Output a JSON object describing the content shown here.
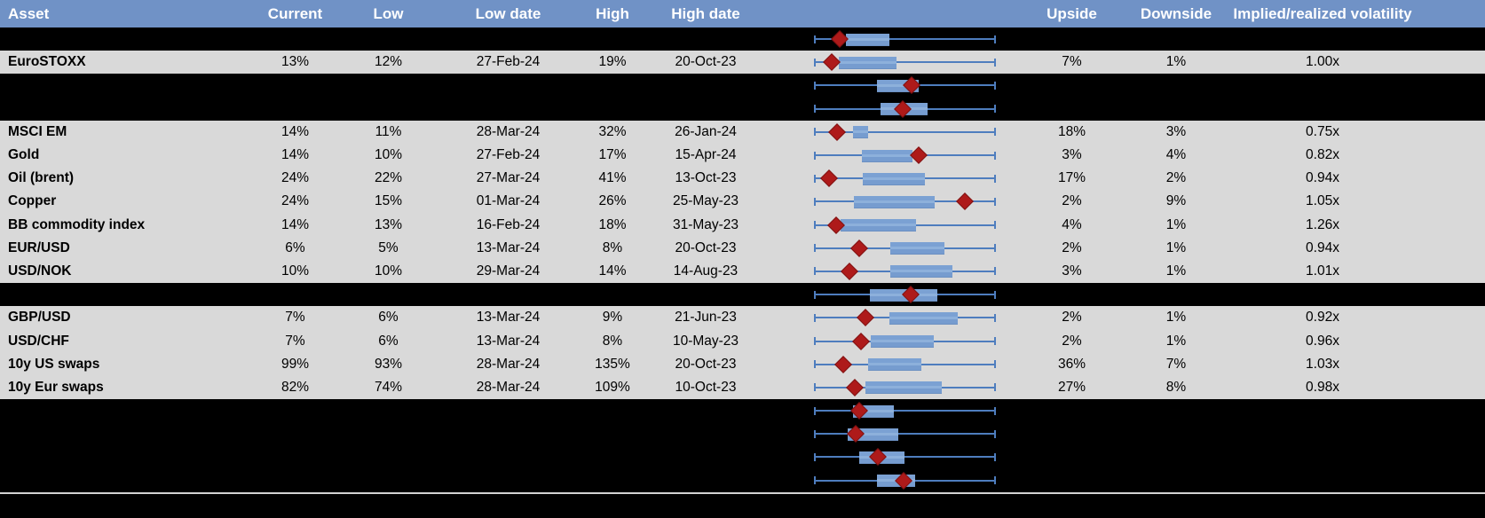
{
  "colors": {
    "header_bg": "#7092C6",
    "row_bg": "#D9D9D9",
    "black_band": "#000000",
    "whisker_blue": "#4E7DBE",
    "box_blue": "#7BA1D3",
    "marker_red": "#AE1A1A"
  },
  "header": {
    "columns": [
      "Asset",
      "Current",
      "Low",
      "Low date",
      "High",
      "High date",
      "",
      "Upside",
      "Downside",
      "Implied/realized volatility"
    ]
  },
  "rows": [
    {
      "type": "chart",
      "asset": "",
      "current": "",
      "low": "",
      "low_date": "",
      "high": "",
      "high_date": "",
      "upside": "",
      "downside": "",
      "implied": "",
      "box_lo": 0.176,
      "box_hi": 0.415,
      "marker": 0.142
    },
    {
      "type": "data",
      "asset": "EuroSTOXX",
      "current": "13%",
      "low": "12%",
      "low_date": "27-Feb-24",
      "high": "19%",
      "high_date": "20-Oct-23",
      "upside": "7%",
      "downside": "1%",
      "implied": "1.00x",
      "box_lo": 0.137,
      "box_hi": 0.454,
      "marker": 0.098
    },
    {
      "type": "chart",
      "asset": "",
      "current": "",
      "low": "",
      "low_date": "",
      "high": "",
      "high_date": "",
      "upside": "",
      "downside": "",
      "implied": "",
      "box_lo": 0.346,
      "box_hi": 0.576,
      "marker": 0.537
    },
    {
      "type": "chart",
      "asset": "",
      "current": "",
      "low": "",
      "low_date": "",
      "high": "",
      "high_date": "",
      "upside": "",
      "downside": "",
      "implied": "",
      "box_lo": 0.366,
      "box_hi": 0.624,
      "marker": 0.488
    },
    {
      "type": "data",
      "asset": "MSCI EM",
      "current": "14%",
      "low": "11%",
      "low_date": "28-Mar-24",
      "high": "32%",
      "high_date": "26-Jan-24",
      "upside": "18%",
      "downside": "3%",
      "implied": "0.75x",
      "box_lo": 0.215,
      "box_hi": 0.298,
      "marker": 0.127
    },
    {
      "type": "data",
      "asset": "Gold",
      "current": "14%",
      "low": "10%",
      "low_date": "27-Feb-24",
      "high": "17%",
      "high_date": "15-Apr-24",
      "upside": "3%",
      "downside": "4%",
      "implied": "0.82x",
      "box_lo": 0.263,
      "box_hi": 0.541,
      "marker": 0.576
    },
    {
      "type": "data",
      "asset": "Oil (brent)",
      "current": "24%",
      "low": "22%",
      "low_date": "27-Mar-24",
      "high": "41%",
      "high_date": "13-Oct-23",
      "upside": "17%",
      "downside": "2%",
      "implied": "0.94x",
      "box_lo": 0.268,
      "box_hi": 0.61,
      "marker": 0.083
    },
    {
      "type": "data",
      "asset": "Copper",
      "current": "24%",
      "low": "15%",
      "low_date": "01-Mar-24",
      "high": "26%",
      "high_date": "25-May-23",
      "upside": "2%",
      "downside": "9%",
      "implied": "1.05x",
      "box_lo": 0.22,
      "box_hi": 0.663,
      "marker": 0.829
    },
    {
      "type": "data",
      "asset": "BB commodity index",
      "current": "14%",
      "low": "13%",
      "low_date": "16-Feb-24",
      "high": "18%",
      "high_date": "31-May-23",
      "upside": "4%",
      "downside": "1%",
      "implied": "1.26x",
      "box_lo": 0.146,
      "box_hi": 0.561,
      "marker": 0.122
    },
    {
      "type": "data",
      "asset": "EUR/USD",
      "current": "6%",
      "low": "5%",
      "low_date": "13-Mar-24",
      "high": "8%",
      "high_date": "20-Oct-23",
      "upside": "2%",
      "downside": "1%",
      "implied": "0.94x",
      "box_lo": 0.42,
      "box_hi": 0.717,
      "marker": 0.249
    },
    {
      "type": "data",
      "asset": "USD/NOK",
      "current": "10%",
      "low": "10%",
      "low_date": "29-Mar-24",
      "high": "14%",
      "high_date": "14-Aug-23",
      "upside": "3%",
      "downside": "1%",
      "implied": "1.01x",
      "box_lo": 0.42,
      "box_hi": 0.761,
      "marker": 0.195
    },
    {
      "type": "chart",
      "asset": "",
      "current": "",
      "low": "",
      "low_date": "",
      "high": "",
      "high_date": "",
      "upside": "",
      "downside": "",
      "implied": "",
      "box_lo": 0.307,
      "box_hi": 0.678,
      "marker": 0.532
    },
    {
      "type": "data",
      "asset": "GBP/USD",
      "current": "7%",
      "low": "6%",
      "low_date": "13-Mar-24",
      "high": "9%",
      "high_date": "21-Jun-23",
      "upside": "2%",
      "downside": "1%",
      "implied": "0.92x",
      "box_lo": 0.415,
      "box_hi": 0.79,
      "marker": 0.283
    },
    {
      "type": "data",
      "asset": "USD/CHF",
      "current": "7%",
      "low": "6%",
      "low_date": "13-Mar-24",
      "high": "8%",
      "high_date": "10-May-23",
      "upside": "2%",
      "downside": "1%",
      "implied": "0.96x",
      "box_lo": 0.312,
      "box_hi": 0.659,
      "marker": 0.259
    },
    {
      "type": "data",
      "asset": "10y US swaps",
      "current": "99%",
      "low": "93%",
      "low_date": "28-Mar-24",
      "high": "135%",
      "high_date": "20-Oct-23",
      "upside": "36%",
      "downside": "7%",
      "implied": "1.03x",
      "box_lo": 0.298,
      "box_hi": 0.59,
      "marker": 0.161
    },
    {
      "type": "data",
      "asset": "10y Eur swaps",
      "current": "82%",
      "low": "74%",
      "low_date": "28-Mar-24",
      "high": "109%",
      "high_date": "10-Oct-23",
      "upside": "27%",
      "downside": "8%",
      "implied": "0.98x",
      "box_lo": 0.283,
      "box_hi": 0.702,
      "marker": 0.224
    },
    {
      "type": "chart",
      "asset": "",
      "current": "",
      "low": "",
      "low_date": "",
      "high": "",
      "high_date": "",
      "upside": "",
      "downside": "",
      "implied": "",
      "box_lo": 0.215,
      "box_hi": 0.439,
      "marker": 0.249
    },
    {
      "type": "chart",
      "asset": "",
      "current": "",
      "low": "",
      "low_date": "",
      "high": "",
      "high_date": "",
      "upside": "",
      "downside": "",
      "implied": "",
      "box_lo": 0.185,
      "box_hi": 0.463,
      "marker": 0.229
    },
    {
      "type": "chart",
      "asset": "",
      "current": "",
      "low": "",
      "low_date": "",
      "high": "",
      "high_date": "",
      "upside": "",
      "downside": "",
      "implied": "",
      "box_lo": 0.249,
      "box_hi": 0.498,
      "marker": 0.351
    },
    {
      "type": "chart",
      "asset": "",
      "current": "",
      "low": "",
      "low_date": "",
      "high": "",
      "high_date": "",
      "upside": "",
      "downside": "",
      "implied": "",
      "box_lo": 0.346,
      "box_hi": 0.556,
      "marker": 0.493
    }
  ],
  "chart_data": {
    "type": "table",
    "note": "Implied volatility table with inline box-and-whisker range plots; red diamond marks current level within the low-high range (whisker normalized 0-1).",
    "columns": [
      "Asset",
      "Current",
      "Low",
      "Low date",
      "High",
      "High date",
      "Range plot",
      "Upside",
      "Downside",
      "Implied/realized volatility"
    ]
  }
}
